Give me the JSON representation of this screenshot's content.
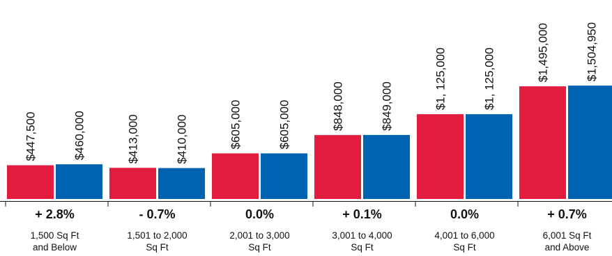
{
  "chart_data": {
    "type": "bar",
    "title": "",
    "xlabel": "",
    "ylabel": "",
    "grid": false,
    "legend": "none",
    "categories": [
      "1,500 Sq Ft\nand Below",
      "1,501 to 2,000\nSq Ft",
      "2,001 to 3,000\nSq Ft",
      "3,001 to 4,000\nSq Ft",
      "4,001 to 6,000\nSq Ft",
      "6,001 Sq Ft\nand Above"
    ],
    "changes": [
      "+ 2.8%",
      "- 0.7%",
      "0.0%",
      "+ 0.1%",
      "0.0%",
      "+ 0.7%"
    ],
    "series": [
      {
        "values": [
          447500,
          413000,
          605000,
          848000,
          1125000,
          1495000
        ],
        "labels": [
          "$447,500",
          "$413,000",
          "$605,000",
          "$848,000",
          "$1, 125,000",
          "$1,495,000"
        ],
        "color": "#e31c3d"
      },
      {
        "values": [
          460000,
          410000,
          605000,
          849000,
          1125000,
          1504950
        ],
        "labels": [
          "$460,000",
          "$410,000",
          "$605,000",
          "$849,000",
          "$1, 125,000",
          "$1,504,950"
        ],
        "color": "#0063b2"
      }
    ],
    "ylim": [
      0,
      1504950
    ]
  }
}
